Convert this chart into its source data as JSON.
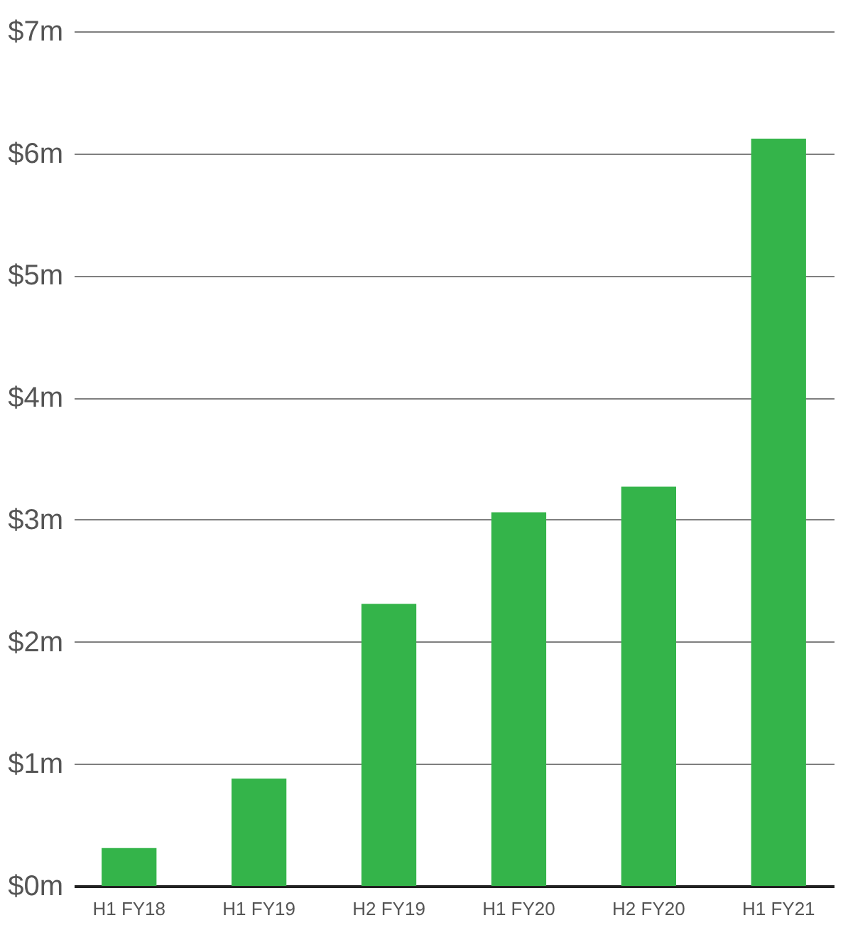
{
  "chart_data": {
    "type": "bar",
    "categories": [
      "H1 FY18",
      "H1 FY19",
      "H2 FY19",
      "H1 FY20",
      "H2 FY20",
      "H1 FY21"
    ],
    "values": [
      0.31,
      0.88,
      2.31,
      3.06,
      3.27,
      6.12
    ],
    "color": "#34b44a",
    "ylim": [
      0,
      7
    ],
    "yticks": [
      {
        "value": 0,
        "label": "$0m"
      },
      {
        "value": 1,
        "label": "$1m"
      },
      {
        "value": 2,
        "label": "$2m"
      },
      {
        "value": 3,
        "label": "$3m"
      },
      {
        "value": 4,
        "label": "$4m"
      },
      {
        "value": 5,
        "label": "$5m"
      },
      {
        "value": 6,
        "label": "$6m"
      },
      {
        "value": 7,
        "label": "$7m"
      }
    ],
    "grid": "y"
  }
}
